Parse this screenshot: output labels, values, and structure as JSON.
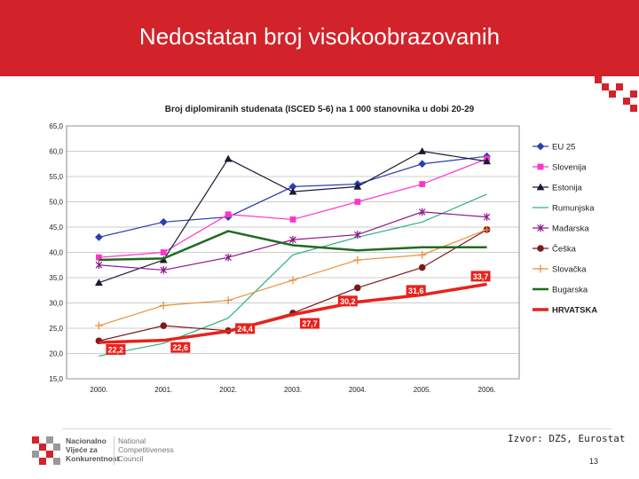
{
  "slide": {
    "title": "Nedostatan broj visokoobrazovanih",
    "source": "Izvor: DZS, Eurostat",
    "page_number": "13"
  },
  "logo": {
    "hr": [
      "Nacionalno",
      "Vijeće za",
      "Konkurentnost"
    ],
    "en": [
      "National",
      "Competitiveness",
      "Council"
    ]
  },
  "colors": {
    "header": "#d2232a"
  },
  "chart_data": {
    "type": "line",
    "title": "Broj diplomiranih studenata (ISCED 5-6) na 1 000 stanovnika u dobi 20-29",
    "categories": [
      "2000.",
      "2001.",
      "2002.",
      "2003.",
      "2004.",
      "2005.",
      "2006."
    ],
    "ylim": [
      15,
      65
    ],
    "yticks": [
      "65,0",
      "60,0",
      "55,0",
      "50,0",
      "45,0",
      "40,0",
      "35,0",
      "30,0",
      "25,0",
      "20,0",
      "15,0"
    ],
    "grid": true,
    "legend": "right",
    "series": [
      {
        "name": "EU 25",
        "color": "#2b3eb3",
        "marker": "diamond",
        "values": [
          43.0,
          46.0,
          47.0,
          53.0,
          53.5,
          57.5,
          59.0
        ]
      },
      {
        "name": "Slovenija",
        "color": "#ff33cc",
        "marker": "square",
        "values": [
          39.0,
          40.0,
          47.5,
          46.5,
          50.0,
          53.5,
          58.5
        ]
      },
      {
        "name": "Estonija",
        "color": "#1a1a33",
        "marker": "triangle",
        "values": [
          34.0,
          38.5,
          58.5,
          52.0,
          53.0,
          60.0,
          58.0
        ]
      },
      {
        "name": "Rumunjska",
        "color": "#2bb08a",
        "marker": "none",
        "values": [
          19.5,
          22.0,
          27.0,
          39.5,
          43.0,
          46.0,
          51.5
        ]
      },
      {
        "name": "Mađarska",
        "color": "#8b1a8b",
        "marker": "star",
        "values": [
          37.5,
          36.5,
          39.0,
          42.5,
          43.5,
          48.0,
          47.0
        ]
      },
      {
        "name": "Češka",
        "color": "#7a1a1a",
        "marker": "circle",
        "values": [
          22.5,
          25.5,
          24.5,
          28.0,
          33.0,
          37.0,
          44.5
        ]
      },
      {
        "name": "Slovačka",
        "color": "#e8913d",
        "marker": "plus",
        "values": [
          25.5,
          29.5,
          30.5,
          34.5,
          38.5,
          39.5,
          44.5
        ]
      },
      {
        "name": "Bugarska",
        "color": "#1f6b1f",
        "marker": "none",
        "values": [
          38.5,
          38.8,
          44.2,
          41.4,
          40.4,
          41.0,
          41.0
        ]
      },
      {
        "name": "HRVATSKA",
        "color": "#e8221c",
        "marker": "none",
        "values": [
          22.2,
          22.6,
          24.4,
          27.7,
          30.2,
          31.6,
          33.7
        ]
      }
    ],
    "data_labels": [
      "22,2",
      "22,6",
      "24,4",
      "27,7",
      "30,2",
      "31,6",
      "33,7"
    ]
  }
}
